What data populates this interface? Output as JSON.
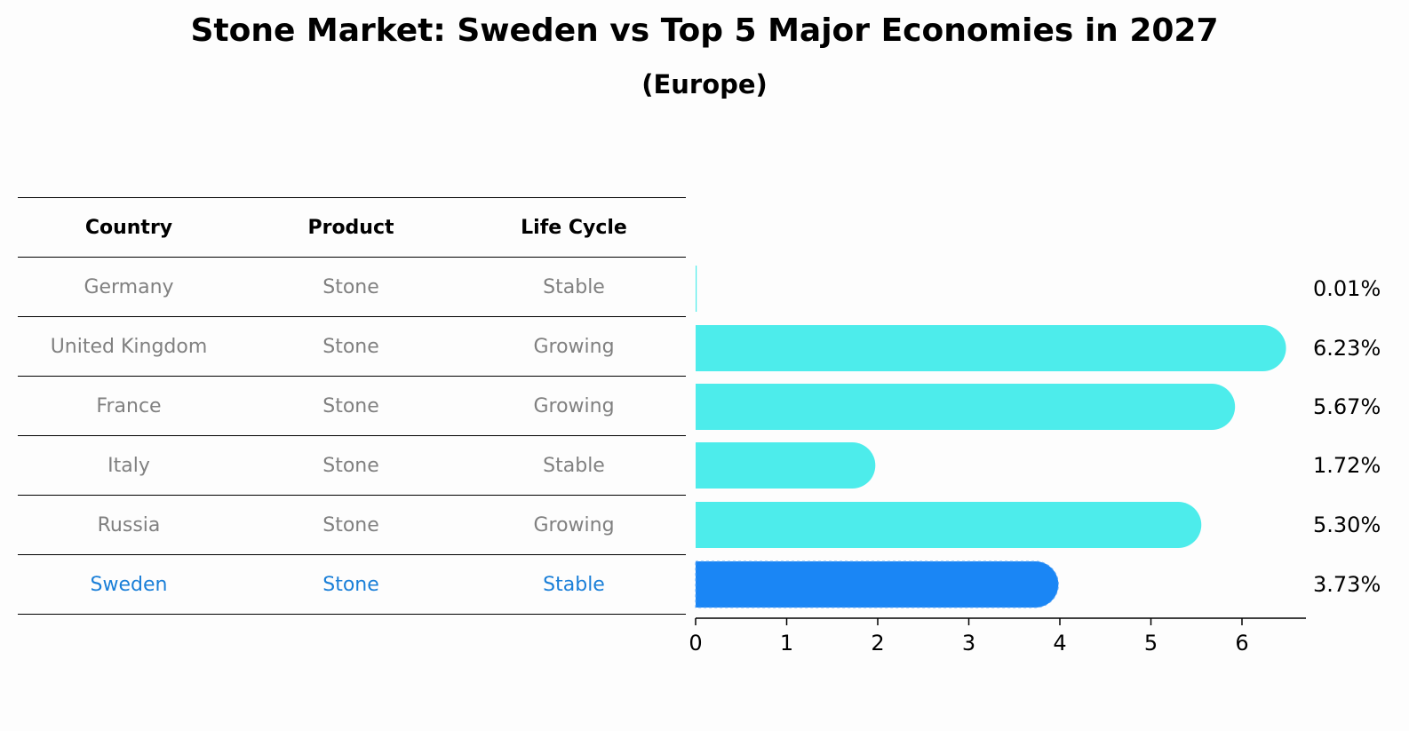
{
  "title": "Stone Market: Sweden vs Top 5 Major Economies in 2027",
  "subtitle": "(Europe)",
  "table": {
    "headers": [
      "Country",
      "Product",
      "Life Cycle"
    ],
    "rows": [
      {
        "country": "Germany",
        "product": "Stone",
        "life_cycle": "Stable"
      },
      {
        "country": "United Kingdom",
        "product": "Stone",
        "life_cycle": "Growing"
      },
      {
        "country": "France",
        "product": "Stone",
        "life_cycle": "Growing"
      },
      {
        "country": "Italy",
        "product": "Stone",
        "life_cycle": "Stable"
      },
      {
        "country": "Russia",
        "product": "Stone",
        "life_cycle": "Growing"
      },
      {
        "country": "Sweden",
        "product": "Stone",
        "life_cycle": "Stable"
      }
    ],
    "highlight_country": "Sweden"
  },
  "chart_data": {
    "type": "bar",
    "orientation": "horizontal",
    "categories": [
      "Germany",
      "United Kingdom",
      "France",
      "Italy",
      "Russia",
      "Sweden"
    ],
    "values": [
      0.01,
      6.23,
      5.67,
      1.72,
      5.3,
      3.73
    ],
    "value_labels": [
      "0.01%",
      "6.23%",
      "5.67%",
      "1.72%",
      "5.30%",
      "3.73%"
    ],
    "xlim": [
      0,
      6.5
    ],
    "xticks": [
      "0",
      "1",
      "2",
      "3",
      "4",
      "5",
      "6"
    ],
    "grid": false,
    "colors": {
      "default": "#4deceb",
      "highlight": "#1a86f5"
    }
  }
}
